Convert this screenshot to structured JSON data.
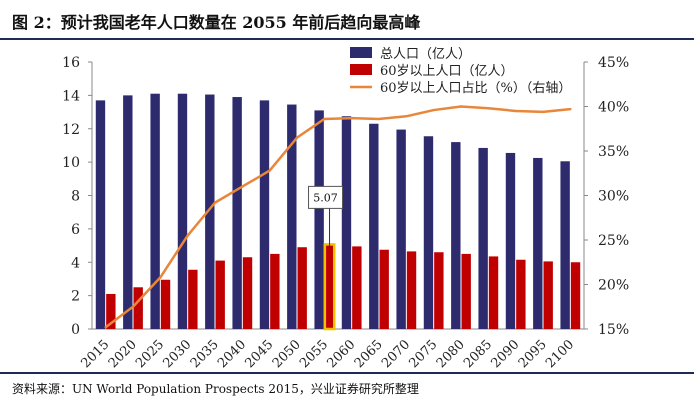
{
  "figure_title": "图 2：预计我国老年人口数量在 2055 年前后趋向最高峰",
  "source": "资料来源：UN World Population Prospects 2015，兴业证券研究所整理",
  "colors": {
    "total_bar": "#2d2a6e",
    "aged_bar": "#c00000",
    "ratio_line": "#e8863a",
    "highlight": "#f2c200",
    "rule": "#1f2a5a"
  },
  "chart_data": {
    "type": "bar",
    "categories": [
      "2015",
      "2020",
      "2025",
      "2030",
      "2035",
      "2040",
      "2045",
      "2050",
      "2055",
      "2060",
      "2065",
      "2070",
      "2075",
      "2080",
      "2085",
      "2090",
      "2095",
      "2100"
    ],
    "series": [
      {
        "name": "总人口（亿人）",
        "type": "bar",
        "axis": "left",
        "values": [
          13.7,
          14.0,
          14.1,
          14.1,
          14.05,
          13.9,
          13.7,
          13.45,
          13.1,
          12.75,
          12.3,
          11.95,
          11.55,
          11.2,
          10.85,
          10.55,
          10.25,
          10.05
        ]
      },
      {
        "name": "60岁以上人口（亿人）",
        "type": "bar",
        "axis": "left",
        "values": [
          2.1,
          2.5,
          2.95,
          3.55,
          4.1,
          4.3,
          4.5,
          4.9,
          5.07,
          4.95,
          4.75,
          4.65,
          4.6,
          4.5,
          4.35,
          4.15,
          4.05,
          4.0
        ]
      },
      {
        "name": "60岁以上人口占比（%）（右轴）",
        "type": "line",
        "axis": "right",
        "values": [
          15.2,
          17.5,
          20.8,
          25.5,
          29.2,
          31.0,
          32.8,
          36.5,
          38.6,
          38.7,
          38.6,
          38.9,
          39.6,
          40.0,
          39.8,
          39.5,
          39.4,
          39.7
        ]
      }
    ],
    "left_axis": {
      "ylim": [
        0,
        16
      ],
      "ticks": [
        "0",
        "2",
        "4",
        "6",
        "8",
        "10",
        "12",
        "14",
        "16"
      ]
    },
    "right_axis": {
      "ylim": [
        15,
        45
      ],
      "ticks": [
        "15%",
        "20%",
        "25%",
        "30%",
        "35%",
        "40%",
        "45%"
      ]
    },
    "annotation": {
      "category": "2055",
      "series": "60岁以上人口（亿人）",
      "label": "5.07"
    },
    "legend_position": "top-right",
    "grid": false
  }
}
